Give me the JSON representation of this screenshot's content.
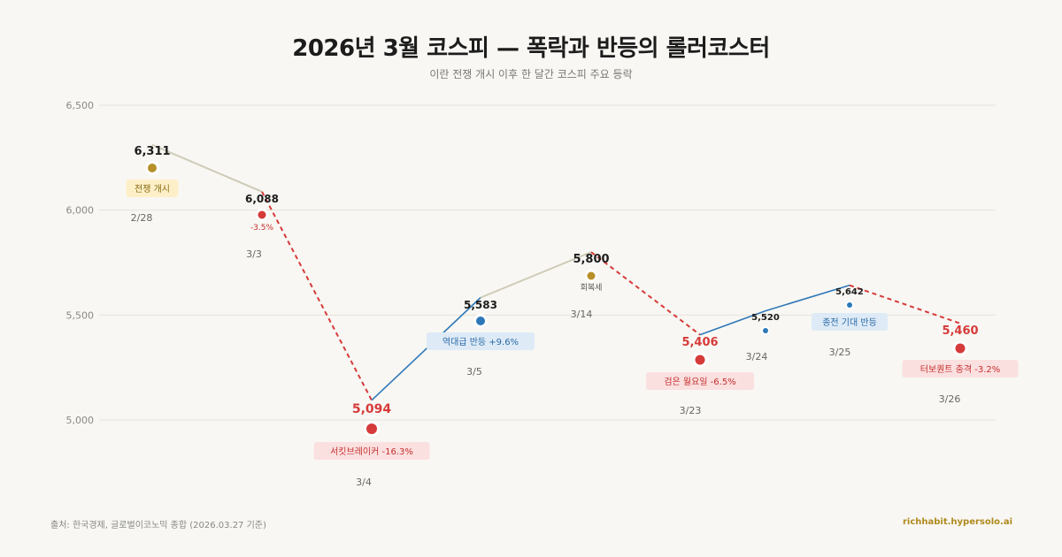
{
  "header": {
    "title": "2026년 3월 코스피 — 폭락과 반등의 롤러코스터",
    "subtitle": "이란 전쟁 개시 이후 한 달간 코스피 주요 등락"
  },
  "footer": {
    "source": "출처: 한국경제, 글로벌이코노믹 종합 (2026.03.27 기준)",
    "brand": "richhabit.hypersolo.ai"
  },
  "colors": {
    "gold": "#b8902a",
    "red": "#d63a3a",
    "blue": "#2e78b8",
    "gray_line": "#cfcbb8"
  },
  "chart_data": {
    "type": "line",
    "title": "2026년 3월 코스피 — 폭락과 반등의 롤러코스터",
    "ylim": [
      4650,
      6500
    ],
    "yticks": [
      5000,
      5500,
      6000,
      6500
    ],
    "ytick_labels": [
      "5,000",
      "5,500",
      "6,000",
      "6,500"
    ],
    "grid": true,
    "points": [
      {
        "date": "2/28",
        "value": 6311,
        "value_label": "6,311",
        "kind": "gold",
        "badge": "전쟁 개시"
      },
      {
        "date": "3/3",
        "value": 6088,
        "value_label": "6,088",
        "kind": "red",
        "badge": "-3.5%"
      },
      {
        "date": "3/4",
        "value": 5094,
        "value_label": "5,094",
        "kind": "red",
        "badge": "서킷브레이커 -16.3%"
      },
      {
        "date": "3/5",
        "value": 5583,
        "value_label": "5,583",
        "kind": "blue",
        "badge": "역대급 반등 +9.6%"
      },
      {
        "date": "3/14",
        "value": 5800,
        "value_label": "5,800",
        "kind": "gold",
        "badge": "회복세"
      },
      {
        "date": "3/23",
        "value": 5406,
        "value_label": "5,406",
        "kind": "red",
        "badge": "검은 월요일 -6.5%"
      },
      {
        "date": "3/24",
        "value": 5520,
        "value_label": "5,520",
        "kind": "blue",
        "badge": ""
      },
      {
        "date": "3/25",
        "value": 5642,
        "value_label": "5,642",
        "kind": "blue",
        "badge": "종전 기대 반등"
      },
      {
        "date": "3/26",
        "value": 5460,
        "value_label": "5,460",
        "kind": "red",
        "badge": "터보퀀트 충격 -3.2%"
      }
    ],
    "segments": [
      {
        "from": 0,
        "to": 1,
        "style": "gray"
      },
      {
        "from": 1,
        "to": 2,
        "style": "red-dashed"
      },
      {
        "from": 2,
        "to": 3,
        "style": "blue"
      },
      {
        "from": 3,
        "to": 4,
        "style": "gray"
      },
      {
        "from": 4,
        "to": 5,
        "style": "red-dashed"
      },
      {
        "from": 5,
        "to": 6,
        "style": "blue"
      },
      {
        "from": 6,
        "to": 7,
        "style": "blue"
      },
      {
        "from": 7,
        "to": 8,
        "style": "red-dashed"
      }
    ]
  }
}
